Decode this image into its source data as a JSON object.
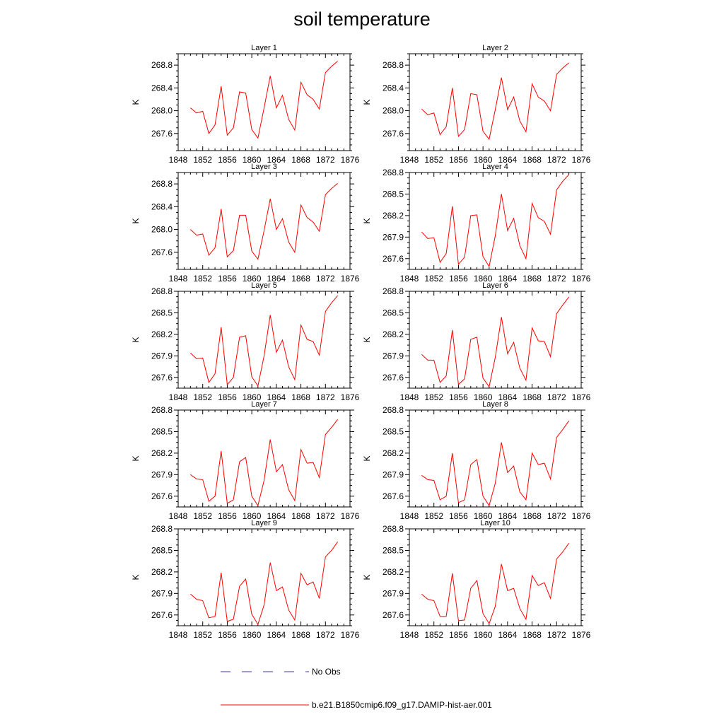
{
  "figure": {
    "title": "soil temperature"
  },
  "legend": {
    "entries": [
      {
        "label": "No Obs",
        "color": "#3a3aa0",
        "style": "dashed"
      },
      {
        "label": "b.e21.B1850cmip6.f09_g17.DAMIP-hist-aer.001",
        "color": "#ff0000",
        "style": "solid"
      }
    ]
  },
  "chart_data": [
    {
      "type": "line",
      "title": "Layer 1",
      "xlabel": "",
      "ylabel": "K",
      "xlim": [
        1848,
        1876
      ],
      "ylim": [
        267.3,
        269.0
      ],
      "xticks": [
        1848,
        1852,
        1856,
        1860,
        1864,
        1868,
        1872,
        1876
      ],
      "yticks": [
        267.6,
        268.0,
        268.4,
        268.8
      ],
      "ytick_labels": [
        "267.6",
        "268.0",
        "268.4",
        "268.8"
      ],
      "x": [
        1850,
        1851,
        1852,
        1853,
        1854,
        1855,
        1856,
        1857,
        1858,
        1859,
        1860,
        1861,
        1862,
        1863,
        1864,
        1865,
        1866,
        1867,
        1868,
        1869,
        1870,
        1871,
        1872,
        1873,
        1874
      ],
      "series": [
        {
          "name": "b.e21.B1850cmip6.f09_g17.DAMIP-hist-aer.001",
          "color": "#ff0000",
          "values": [
            268.05,
            267.96,
            267.99,
            267.6,
            267.75,
            268.43,
            267.57,
            267.7,
            268.33,
            268.31,
            267.67,
            267.52,
            268.05,
            268.61,
            268.05,
            268.27,
            267.85,
            267.66,
            268.5,
            268.28,
            268.2,
            268.03,
            268.67,
            268.78,
            268.87
          ]
        }
      ]
    },
    {
      "type": "line",
      "title": "Layer 2",
      "xlabel": "",
      "ylabel": "K",
      "xlim": [
        1848,
        1876
      ],
      "ylim": [
        267.3,
        269.0
      ],
      "xticks": [
        1848,
        1852,
        1856,
        1860,
        1864,
        1868,
        1872,
        1876
      ],
      "yticks": [
        267.6,
        268.0,
        268.4,
        268.8
      ],
      "ytick_labels": [
        "267.6",
        "268.0",
        "268.4",
        "268.8"
      ],
      "x": [
        1850,
        1851,
        1852,
        1853,
        1854,
        1855,
        1856,
        1857,
        1858,
        1859,
        1860,
        1861,
        1862,
        1863,
        1864,
        1865,
        1866,
        1867,
        1868,
        1869,
        1870,
        1871,
        1872,
        1873,
        1874
      ],
      "series": [
        {
          "name": "b.e21.B1850cmip6.f09_g17.DAMIP-hist-aer.001",
          "color": "#ff0000",
          "values": [
            268.03,
            267.93,
            267.96,
            267.58,
            267.72,
            268.4,
            267.55,
            267.67,
            268.3,
            268.28,
            267.64,
            267.5,
            268.02,
            268.58,
            268.02,
            268.24,
            267.82,
            267.63,
            268.47,
            268.24,
            268.17,
            268.0,
            268.64,
            268.75,
            268.84
          ]
        }
      ]
    },
    {
      "type": "line",
      "title": "Layer 3",
      "xlabel": "",
      "ylabel": "K",
      "xlim": [
        1848,
        1876
      ],
      "ylim": [
        267.3,
        269.0
      ],
      "xticks": [
        1848,
        1852,
        1856,
        1860,
        1864,
        1868,
        1872,
        1876
      ],
      "yticks": [
        267.6,
        268.0,
        268.4,
        268.8
      ],
      "ytick_labels": [
        "267.6",
        "268.0",
        "268.4",
        "268.8"
      ],
      "x": [
        1850,
        1851,
        1852,
        1853,
        1854,
        1855,
        1856,
        1857,
        1858,
        1859,
        1860,
        1861,
        1862,
        1863,
        1864,
        1865,
        1866,
        1867,
        1868,
        1869,
        1870,
        1871,
        1872,
        1873,
        1874
      ],
      "series": [
        {
          "name": "b.e21.B1850cmip6.f09_g17.DAMIP-hist-aer.001",
          "color": "#ff0000",
          "values": [
            268.0,
            267.9,
            267.92,
            267.55,
            267.68,
            268.36,
            267.52,
            267.63,
            268.25,
            268.25,
            267.62,
            267.48,
            267.98,
            268.54,
            268.0,
            268.19,
            267.78,
            267.6,
            268.43,
            268.21,
            268.13,
            267.97,
            268.61,
            268.72,
            268.81
          ]
        }
      ]
    },
    {
      "type": "line",
      "title": "Layer 4",
      "xlabel": "",
      "ylabel": "K",
      "xlim": [
        1848,
        1876
      ],
      "ylim": [
        267.45,
        268.8
      ],
      "xticks": [
        1848,
        1852,
        1856,
        1860,
        1864,
        1868,
        1872,
        1876
      ],
      "yticks": [
        267.6,
        267.9,
        268.2,
        268.5,
        268.8
      ],
      "ytick_labels": [
        "267.6",
        "267.9",
        "268.2",
        "268.5",
        "268.8"
      ],
      "x": [
        1850,
        1851,
        1852,
        1853,
        1854,
        1855,
        1856,
        1857,
        1858,
        1859,
        1860,
        1861,
        1862,
        1863,
        1864,
        1865,
        1866,
        1867,
        1868,
        1869,
        1870,
        1871,
        1872,
        1873,
        1874
      ],
      "series": [
        {
          "name": "b.e21.B1850cmip6.f09_g17.DAMIP-hist-aer.001",
          "color": "#ff0000",
          "values": [
            267.97,
            267.88,
            267.89,
            267.55,
            267.67,
            268.33,
            267.52,
            267.62,
            268.2,
            268.21,
            267.63,
            267.49,
            267.92,
            268.5,
            267.99,
            268.16,
            267.78,
            267.6,
            268.37,
            268.17,
            268.12,
            267.94,
            268.56,
            268.68,
            268.77
          ]
        }
      ]
    },
    {
      "type": "line",
      "title": "Layer 5",
      "xlabel": "",
      "ylabel": "K",
      "xlim": [
        1848,
        1876
      ],
      "ylim": [
        267.45,
        268.8
      ],
      "xticks": [
        1848,
        1852,
        1856,
        1860,
        1864,
        1868,
        1872,
        1876
      ],
      "yticks": [
        267.6,
        267.9,
        268.2,
        268.5,
        268.8
      ],
      "ytick_labels": [
        "267.6",
        "267.9",
        "268.2",
        "268.5",
        "268.8"
      ],
      "x": [
        1850,
        1851,
        1852,
        1853,
        1854,
        1855,
        1856,
        1857,
        1858,
        1859,
        1860,
        1861,
        1862,
        1863,
        1864,
        1865,
        1866,
        1867,
        1868,
        1869,
        1870,
        1871,
        1872,
        1873,
        1874
      ],
      "series": [
        {
          "name": "b.e21.B1850cmip6.f09_g17.DAMIP-hist-aer.001",
          "color": "#ff0000",
          "values": [
            267.94,
            267.86,
            267.87,
            267.53,
            267.65,
            268.3,
            267.5,
            267.6,
            268.16,
            268.18,
            267.61,
            267.48,
            267.9,
            268.47,
            267.95,
            268.12,
            267.75,
            267.57,
            268.33,
            268.13,
            268.1,
            267.91,
            268.52,
            268.64,
            268.74
          ]
        }
      ]
    },
    {
      "type": "line",
      "title": "Layer 6",
      "xlabel": "",
      "ylabel": "K",
      "xlim": [
        1848,
        1876
      ],
      "ylim": [
        267.45,
        268.8
      ],
      "xticks": [
        1848,
        1852,
        1856,
        1860,
        1864,
        1868,
        1872,
        1876
      ],
      "yticks": [
        267.6,
        267.9,
        268.2,
        268.5,
        268.8
      ],
      "ytick_labels": [
        "267.6",
        "267.9",
        "268.2",
        "268.5",
        "268.8"
      ],
      "x": [
        1850,
        1851,
        1852,
        1853,
        1854,
        1855,
        1856,
        1857,
        1858,
        1859,
        1860,
        1861,
        1862,
        1863,
        1864,
        1865,
        1866,
        1867,
        1868,
        1869,
        1870,
        1871,
        1872,
        1873,
        1874
      ],
      "series": [
        {
          "name": "b.e21.B1850cmip6.f09_g17.DAMIP-hist-aer.001",
          "color": "#ff0000",
          "values": [
            267.92,
            267.84,
            267.84,
            267.53,
            267.62,
            268.26,
            267.5,
            267.58,
            268.13,
            268.16,
            267.59,
            267.47,
            267.88,
            268.44,
            267.93,
            268.09,
            267.73,
            267.56,
            268.29,
            268.11,
            268.1,
            267.89,
            268.49,
            268.61,
            268.72
          ]
        }
      ]
    },
    {
      "type": "line",
      "title": "Layer 7",
      "xlabel": "",
      "ylabel": "K",
      "xlim": [
        1848,
        1876
      ],
      "ylim": [
        267.45,
        268.8
      ],
      "xticks": [
        1848,
        1852,
        1856,
        1860,
        1864,
        1868,
        1872,
        1876
      ],
      "yticks": [
        267.6,
        267.9,
        268.2,
        268.5,
        268.8
      ],
      "ytick_labels": [
        "267.6",
        "267.9",
        "268.2",
        "268.5",
        "268.8"
      ],
      "x": [
        1850,
        1851,
        1852,
        1853,
        1854,
        1855,
        1856,
        1857,
        1858,
        1859,
        1860,
        1861,
        1862,
        1863,
        1864,
        1865,
        1866,
        1867,
        1868,
        1869,
        1870,
        1871,
        1872,
        1873,
        1874
      ],
      "series": [
        {
          "name": "b.e21.B1850cmip6.f09_g17.DAMIP-hist-aer.001",
          "color": "#ff0000",
          "values": [
            267.9,
            267.84,
            267.83,
            267.53,
            267.6,
            268.23,
            267.5,
            267.55,
            268.08,
            268.14,
            267.6,
            267.47,
            267.82,
            268.39,
            267.94,
            268.04,
            267.69,
            267.54,
            268.25,
            268.06,
            268.07,
            267.86,
            268.46,
            268.56,
            268.67
          ]
        }
      ]
    },
    {
      "type": "line",
      "title": "Layer 8",
      "xlabel": "",
      "ylabel": "K",
      "xlim": [
        1848,
        1876
      ],
      "ylim": [
        267.45,
        268.8
      ],
      "xticks": [
        1848,
        1852,
        1856,
        1860,
        1864,
        1868,
        1872,
        1876
      ],
      "yticks": [
        267.6,
        267.9,
        268.2,
        268.5,
        268.8
      ],
      "ytick_labels": [
        "267.6",
        "267.9",
        "268.2",
        "268.5",
        "268.8"
      ],
      "x": [
        1850,
        1851,
        1852,
        1853,
        1854,
        1855,
        1856,
        1857,
        1858,
        1859,
        1860,
        1861,
        1862,
        1863,
        1864,
        1865,
        1866,
        1867,
        1868,
        1869,
        1870,
        1871,
        1872,
        1873,
        1874
      ],
      "series": [
        {
          "name": "b.e21.B1850cmip6.f09_g17.DAMIP-hist-aer.001",
          "color": "#ff0000",
          "values": [
            267.89,
            267.83,
            267.82,
            267.55,
            267.6,
            268.2,
            267.51,
            267.55,
            268.04,
            268.11,
            267.6,
            267.47,
            267.78,
            268.35,
            267.93,
            268.02,
            267.66,
            267.55,
            268.2,
            268.04,
            268.06,
            267.84,
            268.42,
            268.53,
            268.65
          ]
        }
      ]
    },
    {
      "type": "line",
      "title": "Layer 9",
      "xlabel": "",
      "ylabel": "K",
      "xlim": [
        1848,
        1876
      ],
      "ylim": [
        267.45,
        268.8
      ],
      "xticks": [
        1848,
        1852,
        1856,
        1860,
        1864,
        1868,
        1872,
        1876
      ],
      "yticks": [
        267.6,
        267.9,
        268.2,
        268.5,
        268.8
      ],
      "ytick_labels": [
        "267.6",
        "267.9",
        "268.2",
        "268.5",
        "268.8"
      ],
      "x": [
        1850,
        1851,
        1852,
        1853,
        1854,
        1855,
        1856,
        1857,
        1858,
        1859,
        1860,
        1861,
        1862,
        1863,
        1864,
        1865,
        1866,
        1867,
        1868,
        1869,
        1870,
        1871,
        1872,
        1873,
        1874
      ],
      "series": [
        {
          "name": "b.e21.B1850cmip6.f09_g17.DAMIP-hist-aer.001",
          "color": "#ff0000",
          "values": [
            267.89,
            267.82,
            267.8,
            267.56,
            267.58,
            268.19,
            267.51,
            267.54,
            268.0,
            268.1,
            267.61,
            267.47,
            267.74,
            268.33,
            267.94,
            267.99,
            267.67,
            267.53,
            268.18,
            268.02,
            268.06,
            267.83,
            268.41,
            268.5,
            268.62
          ]
        }
      ]
    },
    {
      "type": "line",
      "title": "Layer 10",
      "xlabel": "",
      "ylabel": "K",
      "xlim": [
        1848,
        1876
      ],
      "ylim": [
        267.45,
        268.8
      ],
      "xticks": [
        1848,
        1852,
        1856,
        1860,
        1864,
        1868,
        1872,
        1876
      ],
      "yticks": [
        267.6,
        267.9,
        268.2,
        268.5,
        268.8
      ],
      "ytick_labels": [
        "267.6",
        "267.9",
        "268.2",
        "268.5",
        "268.8"
      ],
      "x": [
        1850,
        1851,
        1852,
        1853,
        1854,
        1855,
        1856,
        1857,
        1858,
        1859,
        1860,
        1861,
        1862,
        1863,
        1864,
        1865,
        1866,
        1867,
        1868,
        1869,
        1870,
        1871,
        1872,
        1873,
        1874
      ],
      "series": [
        {
          "name": "b.e21.B1850cmip6.f09_g17.DAMIP-hist-aer.001",
          "color": "#ff0000",
          "values": [
            267.89,
            267.82,
            267.8,
            267.58,
            267.58,
            268.18,
            267.52,
            267.53,
            267.97,
            268.08,
            267.62,
            267.48,
            267.72,
            268.31,
            267.94,
            267.97,
            267.69,
            267.54,
            268.15,
            268.01,
            268.05,
            267.83,
            268.38,
            268.48,
            268.6
          ]
        }
      ]
    }
  ]
}
